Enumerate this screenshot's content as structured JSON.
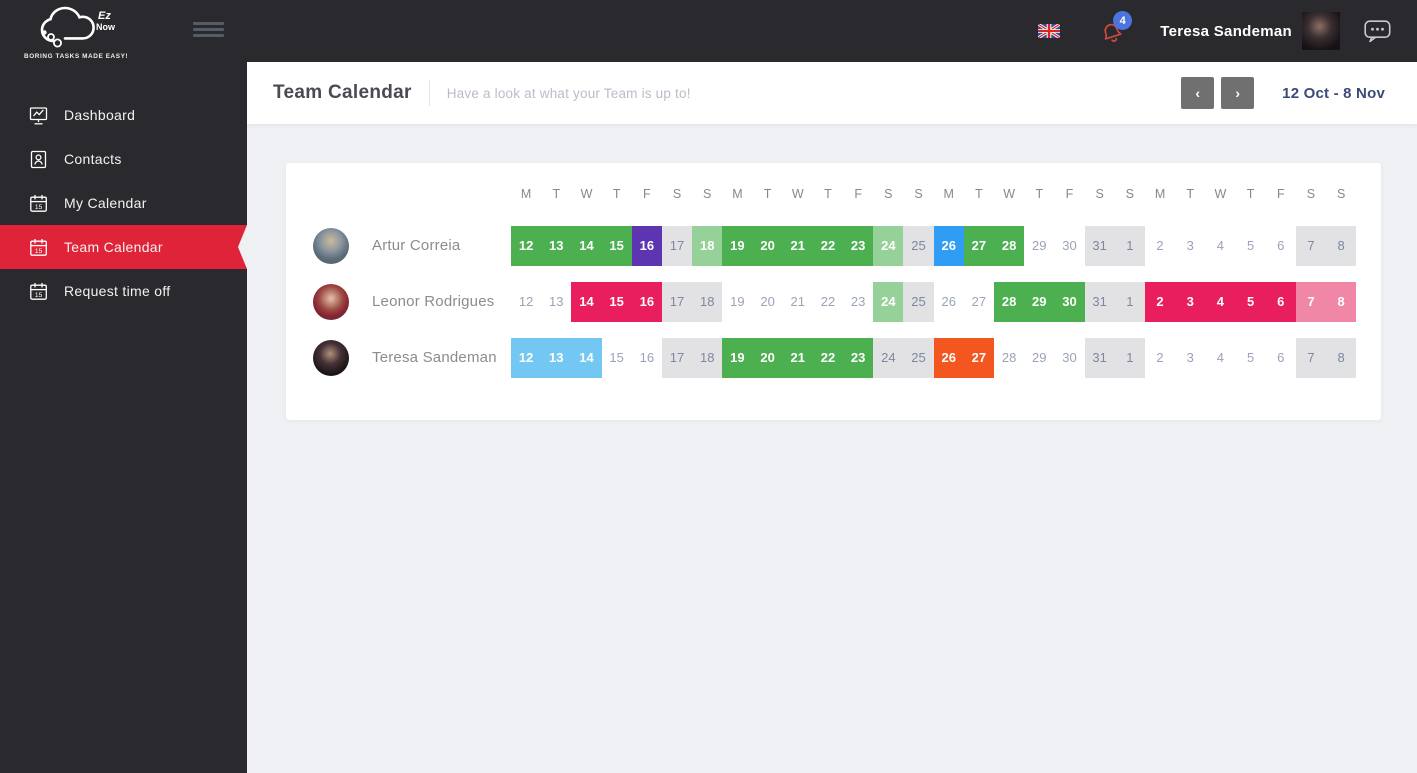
{
  "topbar": {
    "brand": {
      "name_script": "Ez",
      "name_sub": "Now",
      "tagline": "BORING TASKS MADE EASY!"
    },
    "user_name": "Teresa Sandeman",
    "notification_count": "4"
  },
  "icons": {
    "hamburger-icon": "three horizontal bars menu toggle",
    "uk-flag-icon": "united kingdom flag language selector",
    "bell-icon": "red notification bell",
    "chat-icon": "speech bubble with three dots",
    "dashboard-icon": "presentation board with line chart",
    "contacts-icon": "person card",
    "calendar-icon": "calendar sheet with number 15",
    "prev-icon": "chevron left",
    "next-icon": "chevron right",
    "cloud-logo-icon": "outlined cloud with bubbles"
  },
  "sidebar": {
    "items": [
      {
        "label": "Dashboard",
        "active": false
      },
      {
        "label": "Contacts",
        "active": false
      },
      {
        "label": "My Calendar",
        "active": false
      },
      {
        "label": "Team Calendar",
        "active": true
      },
      {
        "label": "Request time off",
        "active": false
      }
    ]
  },
  "header": {
    "title": "Team Calendar",
    "subtitle": "Have a look at what your Team is up to!",
    "prev_label": "‹",
    "next_label": "›",
    "date_range": "12 Oct - 8 Nov"
  },
  "calendar": {
    "day_headers": [
      "M",
      "T",
      "W",
      "T",
      "F",
      "S",
      "S",
      "M",
      "T",
      "W",
      "T",
      "F",
      "S",
      "S",
      "M",
      "T",
      "W",
      "T",
      "F",
      "S",
      "S",
      "M",
      "T",
      "W",
      "T",
      "F",
      "S",
      "S"
    ],
    "people": [
      {
        "name": "Artur Correia",
        "cells": [
          {
            "day": "12",
            "type": "green"
          },
          {
            "day": "13",
            "type": "green"
          },
          {
            "day": "14",
            "type": "green"
          },
          {
            "day": "15",
            "type": "green"
          },
          {
            "day": "16",
            "type": "purple"
          },
          {
            "day": "17",
            "type": "weekend"
          },
          {
            "day": "18",
            "type": "green-light"
          },
          {
            "day": "19",
            "type": "green"
          },
          {
            "day": "20",
            "type": "green"
          },
          {
            "day": "21",
            "type": "green"
          },
          {
            "day": "22",
            "type": "green"
          },
          {
            "day": "23",
            "type": "green"
          },
          {
            "day": "24",
            "type": "green-light"
          },
          {
            "day": "25",
            "type": "weekend"
          },
          {
            "day": "26",
            "type": "blue"
          },
          {
            "day": "27",
            "type": "green"
          },
          {
            "day": "28",
            "type": "green"
          },
          {
            "day": "29",
            "type": "none"
          },
          {
            "day": "30",
            "type": "none"
          },
          {
            "day": "31",
            "type": "weekend"
          },
          {
            "day": "1",
            "type": "weekend"
          },
          {
            "day": "2",
            "type": "none"
          },
          {
            "day": "3",
            "type": "none"
          },
          {
            "day": "4",
            "type": "none"
          },
          {
            "day": "5",
            "type": "none"
          },
          {
            "day": "6",
            "type": "none"
          },
          {
            "day": "7",
            "type": "weekend"
          },
          {
            "day": "8",
            "type": "weekend"
          }
        ]
      },
      {
        "name": "Leonor Rodrigues",
        "cells": [
          {
            "day": "12",
            "type": "none"
          },
          {
            "day": "13",
            "type": "none"
          },
          {
            "day": "14",
            "type": "pink"
          },
          {
            "day": "15",
            "type": "pink"
          },
          {
            "day": "16",
            "type": "pink"
          },
          {
            "day": "17",
            "type": "weekend"
          },
          {
            "day": "18",
            "type": "weekend"
          },
          {
            "day": "19",
            "type": "none"
          },
          {
            "day": "20",
            "type": "none"
          },
          {
            "day": "21",
            "type": "none"
          },
          {
            "day": "22",
            "type": "none"
          },
          {
            "day": "23",
            "type": "none"
          },
          {
            "day": "24",
            "type": "green-light"
          },
          {
            "day": "25",
            "type": "weekend"
          },
          {
            "day": "26",
            "type": "none"
          },
          {
            "day": "27",
            "type": "none"
          },
          {
            "day": "28",
            "type": "green"
          },
          {
            "day": "29",
            "type": "green"
          },
          {
            "day": "30",
            "type": "green"
          },
          {
            "day": "31",
            "type": "weekend"
          },
          {
            "day": "1",
            "type": "weekend"
          },
          {
            "day": "2",
            "type": "pink"
          },
          {
            "day": "3",
            "type": "pink"
          },
          {
            "day": "4",
            "type": "pink"
          },
          {
            "day": "5",
            "type": "pink"
          },
          {
            "day": "6",
            "type": "pink"
          },
          {
            "day": "7",
            "type": "pink-light"
          },
          {
            "day": "8",
            "type": "pink-light"
          }
        ]
      },
      {
        "name": "Teresa Sandeman",
        "cells": [
          {
            "day": "12",
            "type": "blue-light"
          },
          {
            "day": "13",
            "type": "blue-light"
          },
          {
            "day": "14",
            "type": "blue-light"
          },
          {
            "day": "15",
            "type": "none"
          },
          {
            "day": "16",
            "type": "none"
          },
          {
            "day": "17",
            "type": "weekend"
          },
          {
            "day": "18",
            "type": "weekend"
          },
          {
            "day": "19",
            "type": "green"
          },
          {
            "day": "20",
            "type": "green"
          },
          {
            "day": "21",
            "type": "green"
          },
          {
            "day": "22",
            "type": "green"
          },
          {
            "day": "23",
            "type": "green"
          },
          {
            "day": "24",
            "type": "weekend"
          },
          {
            "day": "25",
            "type": "weekend"
          },
          {
            "day": "26",
            "type": "orange"
          },
          {
            "day": "27",
            "type": "orange"
          },
          {
            "day": "28",
            "type": "none"
          },
          {
            "day": "29",
            "type": "none"
          },
          {
            "day": "30",
            "type": "none"
          },
          {
            "day": "31",
            "type": "weekend"
          },
          {
            "day": "1",
            "type": "weekend"
          },
          {
            "day": "2",
            "type": "none"
          },
          {
            "day": "3",
            "type": "none"
          },
          {
            "day": "4",
            "type": "none"
          },
          {
            "day": "5",
            "type": "none"
          },
          {
            "day": "6",
            "type": "none"
          },
          {
            "day": "7",
            "type": "weekend"
          },
          {
            "day": "8",
            "type": "weekend"
          }
        ]
      }
    ]
  },
  "colors": {
    "accent_red": "#df2339",
    "event_green": "#4caf50",
    "event_green_light": "#97d19a",
    "event_purple": "#5d35b1",
    "event_blue": "#2e9df3",
    "event_blue_light": "#72c8f2",
    "event_pink": "#e91e5c",
    "event_pink_light": "#f187a6",
    "event_orange": "#f4561f",
    "weekend_gray": "#e2e2e4",
    "badge_blue": "#4b74dd",
    "sidebar_dark": "#2a292d",
    "body_gray": "#eef0f4",
    "date_navy": "#3d4a78"
  }
}
